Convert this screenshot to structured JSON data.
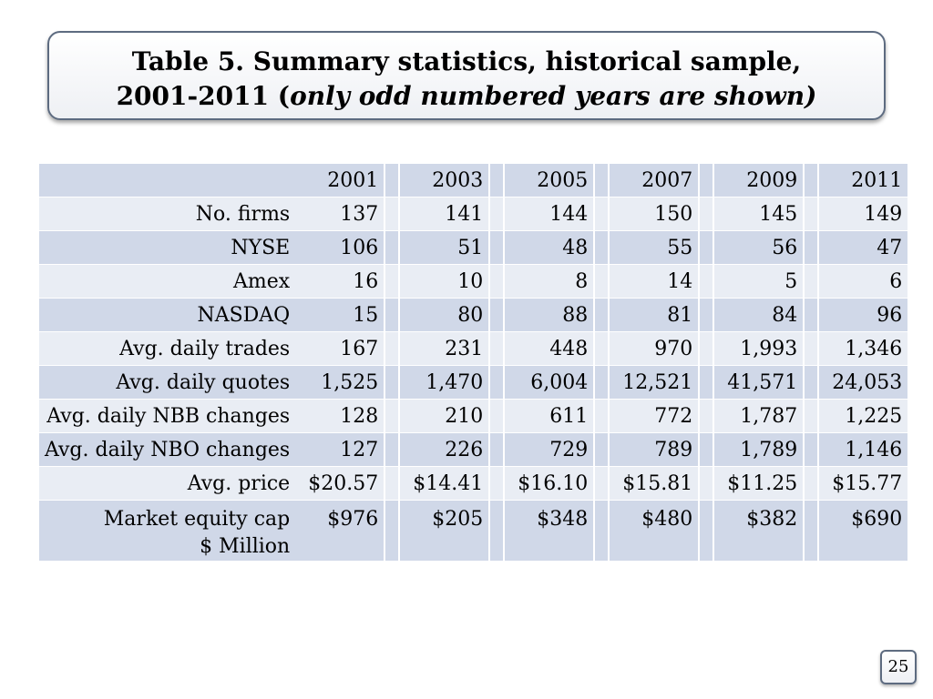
{
  "title": {
    "line1": "Table 5. Summary statistics, historical sample,",
    "line2_prefix": "2001-2011 (",
    "line2_italic": "only odd numbered years are shown)"
  },
  "table": {
    "years": [
      "2001",
      "2003",
      "2005",
      "2007",
      "2009",
      "2011"
    ],
    "rows": [
      {
        "label": "No. firms",
        "values": [
          "137",
          "141",
          "144",
          "150",
          "145",
          "149"
        ]
      },
      {
        "label": "NYSE",
        "values": [
          "106",
          "51",
          "48",
          "55",
          "56",
          "47"
        ]
      },
      {
        "label": "Amex",
        "values": [
          "16",
          "10",
          "8",
          "14",
          "5",
          "6"
        ]
      },
      {
        "label": "NASDAQ",
        "values": [
          "15",
          "80",
          "88",
          "81",
          "84",
          "96"
        ]
      },
      {
        "label": "Avg. daily trades",
        "values": [
          "167",
          "231",
          "448",
          "970",
          "1,993",
          "1,346"
        ]
      },
      {
        "label": "Avg. daily quotes",
        "values": [
          "1,525",
          "1,470",
          "6,004",
          "12,521",
          "41,571",
          "24,053"
        ]
      },
      {
        "label": "Avg. daily NBB changes",
        "values": [
          "128",
          "210",
          "611",
          "772",
          "1,787",
          "1,225"
        ]
      },
      {
        "label": "Avg. daily NBO changes",
        "values": [
          "127",
          "226",
          "729",
          "789",
          "1,789",
          "1,146"
        ]
      },
      {
        "label": "Avg. price",
        "values": [
          "$20.57",
          "$14.41",
          "$16.10",
          "$15.81",
          "$11.25",
          "$15.77"
        ]
      },
      {
        "label_line1": "Market equity cap",
        "label_line2": "$ Million",
        "values": [
          "$976",
          "$205",
          "$348",
          "$480",
          "$382",
          "$690"
        ]
      }
    ]
  },
  "page_number": "25"
}
